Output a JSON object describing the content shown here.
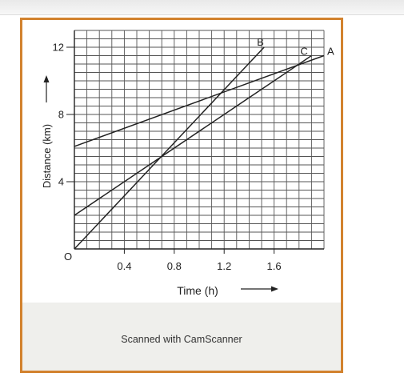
{
  "footer": {
    "text": "Scanned with CamScanner"
  },
  "colors": {
    "frame": "#d2822e",
    "ink": "#222222",
    "grid": "#555555"
  },
  "chart_data": {
    "type": "line",
    "xlabel": "Time (h)",
    "ylabel": "Distance (km)",
    "xlim": [
      0,
      2.0
    ],
    "ylim": [
      0,
      13
    ],
    "x_ticks": [
      0.4,
      0.8,
      1.2,
      1.6
    ],
    "x_tick_labels": [
      "0.4",
      "0.8",
      "1.2",
      "1.6"
    ],
    "y_ticks": [
      4,
      8,
      12
    ],
    "y_tick_labels": [
      "4",
      "8",
      "12"
    ],
    "origin_label": "O",
    "grid": true,
    "series": [
      {
        "name": "A",
        "x": [
          0,
          2.0
        ],
        "y": [
          6.1,
          11.5
        ]
      },
      {
        "name": "B",
        "x": [
          0,
          1.52
        ],
        "y": [
          0,
          12
        ]
      },
      {
        "name": "C",
        "x": [
          0,
          1.9
        ],
        "y": [
          2.0,
          11.5
        ]
      }
    ]
  }
}
